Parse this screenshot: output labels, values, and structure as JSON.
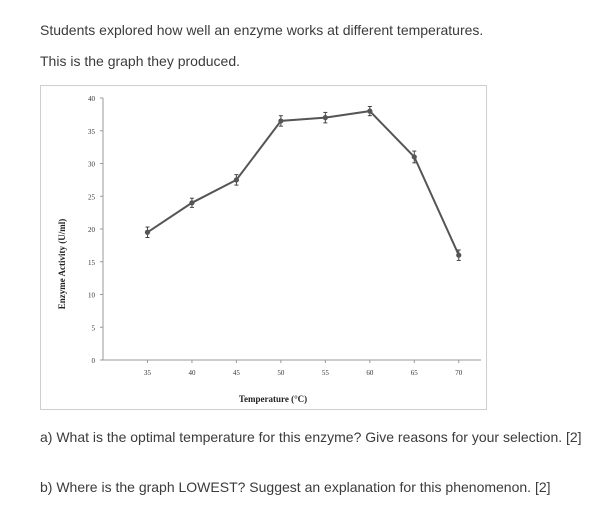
{
  "intro": {
    "line1": "Students explored how well an enzyme works at different temperatures.",
    "line2": "This is the graph they produced."
  },
  "chart_data": {
    "type": "line",
    "xlabel": "Temperature (°C)",
    "ylabel": "Enzyme Activity (U/ml)",
    "x": [
      35,
      40,
      45,
      50,
      55,
      60,
      65,
      70
    ],
    "y": [
      19.5,
      24,
      27.5,
      36.5,
      37,
      38,
      31,
      16
    ],
    "error": [
      0.8,
      0.7,
      0.8,
      0.8,
      0.8,
      0.7,
      0.9,
      0.8
    ],
    "xticks": [
      35,
      40,
      45,
      50,
      55,
      60,
      65,
      70
    ],
    "yticks": [
      0,
      5,
      10,
      15,
      20,
      25,
      30,
      35,
      40
    ],
    "xlim": [
      30,
      72.5
    ],
    "ylim": [
      0,
      40
    ],
    "grid": false,
    "line_color": "#555555"
  },
  "questions": {
    "a": "a) What is the optimal temperature for this enzyme? Give reasons for your selection. [2]",
    "b": "b) Where is the graph LOWEST? Suggest an explanation for this phenomenon. [2]"
  }
}
